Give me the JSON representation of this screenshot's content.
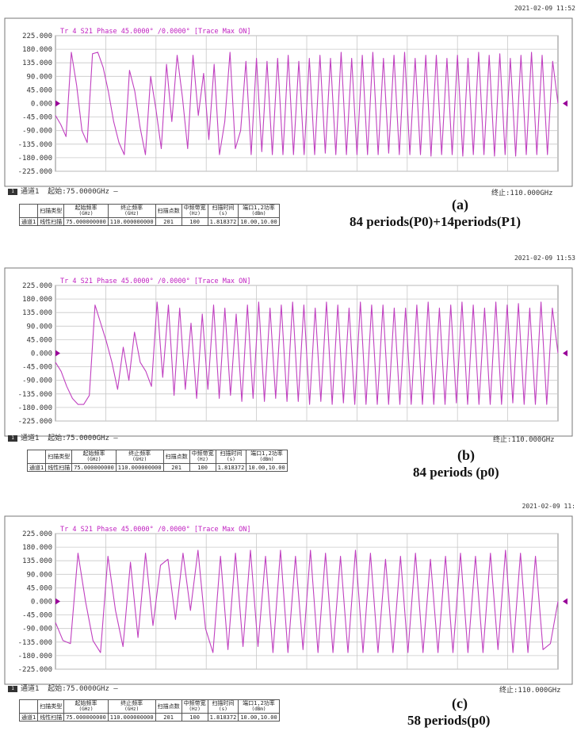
{
  "panels": [
    {
      "timestamp": "2021-02-09 11:52",
      "header": "Tr 4  S21 Phase 45.0000° /0.0000°   [Trace Max ON]",
      "start_label": "起始:75.0000GHz",
      "channel": "通道1",
      "stop_label": "终止:110.000GHz",
      "letter": "(a)",
      "caption": "84 periods(P0)+14periods(P1)"
    },
    {
      "timestamp": "2021-02-09 11:53",
      "header": "Tr 4  S21 Phase 45.0000° /0.0000°   [Trace Max ON]",
      "start_label": "起始:75.0000GHz",
      "channel": "通道1",
      "stop_label": "终止:110.000GHz",
      "letter": "(b)",
      "caption": "84 periods (p0)"
    },
    {
      "timestamp": "2021-02-09 11:",
      "header": "Tr 4  S21 Phase 45.0000° /0.0000°   [Trace Max ON]",
      "start_label": "起始:75.0000GHz",
      "channel": "通道1",
      "stop_label": "终止:110.000GHz",
      "letter": "(c)",
      "caption": "58 periods(p0)"
    }
  ],
  "sweep_table": {
    "headers": [
      {
        "name": "扫描类型",
        "unit": ""
      },
      {
        "name": "起始频率",
        "unit": "(GHz)"
      },
      {
        "name": "终止频率",
        "unit": "(GHz)"
      },
      {
        "name": "扫描点数",
        "unit": ""
      },
      {
        "name": "中频带宽",
        "unit": "(Hz)"
      },
      {
        "name": "扫描时间",
        "unit": "(s)"
      },
      {
        "name": "端口1,2功率",
        "unit": "(dBm)"
      }
    ],
    "row": [
      "通道1",
      "线性扫描",
      "75.000000000",
      "110.000000000",
      "201",
      "100",
      "1.818372",
      "10.00,10.00"
    ]
  },
  "colors": {
    "trace": "#c040c0",
    "marker": "#990099",
    "grid": "#c8c8c8",
    "frame": "#777777"
  },
  "chart_data": [
    {
      "type": "line",
      "title": "Tr 4  S21 Phase 45.0000° /0.0000°   [Trace Max ON]",
      "xlim": [
        75,
        110
      ],
      "ylim": [
        -225,
        225
      ],
      "yticks": [
        "225.000",
        "180.000",
        "135.000",
        "90.000",
        "45.000",
        "0.000",
        "-45.000",
        "-90.000",
        "-135.000",
        "-180.000",
        "-225.000"
      ],
      "grid": true,
      "series": [
        {
          "values": [
            -40,
            -70,
            -110,
            170,
            60,
            -90,
            -130,
            165,
            170,
            120,
            40,
            -60,
            -130,
            -170,
            110,
            40,
            -80,
            -170,
            90,
            -20,
            -150,
            130,
            -60,
            160,
            20,
            -150,
            160,
            -40,
            100,
            -120,
            130,
            -170,
            -60,
            170,
            -150,
            -90,
            140,
            -170,
            150,
            -160,
            140,
            -170,
            150,
            -170,
            160,
            -170,
            140,
            -170,
            150,
            -170,
            160,
            -165,
            150,
            -170,
            170,
            -170,
            150,
            -170,
            160,
            -170,
            170,
            -170,
            150,
            -165,
            160,
            -170,
            170,
            -170,
            150,
            -170,
            160,
            -175,
            160,
            -170,
            150,
            -170,
            160,
            -175,
            150,
            -170,
            170,
            -170,
            160,
            -175,
            165,
            -170,
            150,
            -175,
            160,
            -170,
            170,
            -170,
            160,
            -170,
            140,
            0
          ]
        }
      ]
    },
    {
      "type": "line",
      "title": "Tr 4  S21 Phase 45.0000° /0.0000°   [Trace Max ON]",
      "xlim": [
        75,
        110
      ],
      "ylim": [
        -225,
        225
      ],
      "yticks": [
        "225.000",
        "180.000",
        "135.000",
        "90.000",
        "45.000",
        "0.000",
        "-45.000",
        "-90.000",
        "-135.000",
        "-180.000",
        "-225.000"
      ],
      "grid": true,
      "series": [
        {
          "values": [
            -30,
            -60,
            -110,
            -150,
            -170,
            -170,
            -140,
            160,
            100,
            40,
            -30,
            -120,
            20,
            -90,
            70,
            -30,
            -60,
            -110,
            170,
            -80,
            160,
            -140,
            150,
            -120,
            100,
            -150,
            130,
            -120,
            160,
            -150,
            150,
            -140,
            130,
            -160,
            160,
            -150,
            170,
            -160,
            150,
            -150,
            160,
            -160,
            170,
            -160,
            160,
            -170,
            150,
            -160,
            170,
            -170,
            160,
            -165,
            150,
            -170,
            170,
            -170,
            160,
            -170,
            160,
            -170,
            150,
            -170,
            150,
            -170,
            160,
            -170,
            170,
            -170,
            150,
            -170,
            160,
            -165,
            170,
            -170,
            160,
            -170,
            150,
            -170,
            170,
            -170,
            160,
            -165,
            165,
            -170,
            150,
            -170,
            170,
            -170,
            150,
            0
          ]
        }
      ]
    },
    {
      "type": "line",
      "title": "Tr 4  S21 Phase 45.0000° /0.0000°   [Trace Max ON]",
      "xlim": [
        75,
        110
      ],
      "ylim": [
        -225,
        225
      ],
      "yticks": [
        "225.000",
        "180.000",
        "135.000",
        "90.000",
        "45.000",
        "0.000",
        "-45.000",
        "-90.000",
        "-135.000",
        "-180.000",
        "-225.000"
      ],
      "grid": true,
      "series": [
        {
          "values": [
            -70,
            -130,
            -140,
            160,
            0,
            -130,
            -170,
            150,
            -30,
            -150,
            130,
            -120,
            160,
            -80,
            120,
            140,
            -60,
            160,
            -30,
            170,
            -90,
            -170,
            150,
            -160,
            160,
            -150,
            170,
            -150,
            150,
            -170,
            170,
            -170,
            150,
            -160,
            170,
            -170,
            160,
            -170,
            150,
            -170,
            170,
            -170,
            160,
            -170,
            140,
            -170,
            150,
            -170,
            160,
            -170,
            140,
            -170,
            150,
            -170,
            160,
            -170,
            150,
            -170,
            160,
            -160,
            170,
            -170,
            160,
            -170,
            150,
            -160,
            -140,
            0
          ]
        }
      ]
    }
  ]
}
